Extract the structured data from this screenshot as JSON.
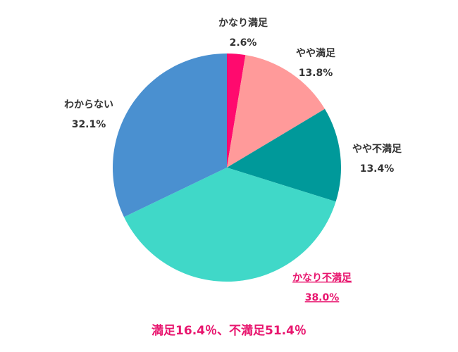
{
  "chart_data": {
    "type": "pie",
    "categories": [
      "かなり満足",
      "やや満足",
      "やや不満足",
      "かなり不満足",
      "わからない"
    ],
    "values": [
      2.6,
      13.8,
      13.4,
      38.0,
      32.1
    ],
    "value_labels": [
      "2.6%",
      "13.8%",
      "13.4%",
      "38.0%",
      "32.1%"
    ],
    "colors": [
      "#ff0a6e",
      "#ff9a9a",
      "#00999a",
      "#40d8c8",
      "#4a90d0"
    ],
    "annotation": "満足16.4％、不満足51.4％"
  }
}
